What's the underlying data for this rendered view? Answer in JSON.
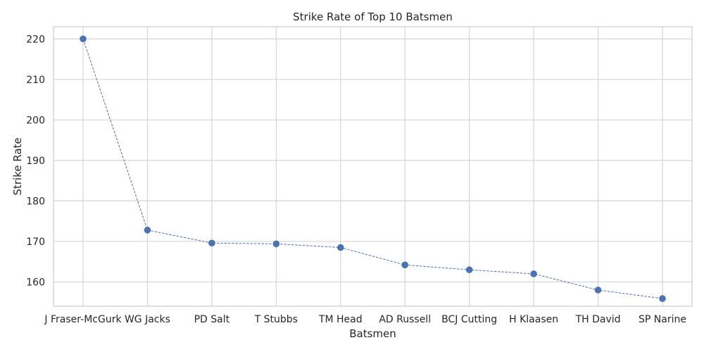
{
  "chart_data": {
    "type": "line",
    "title": "Strike Rate of Top 10 Batsmen",
    "xlabel": "Batsmen",
    "ylabel": "Strike Rate",
    "categories": [
      "J Fraser-McGurk",
      "WG Jacks",
      "PD Salt",
      "T Stubbs",
      "TM Head",
      "AD Russell",
      "BCJ Cutting",
      "H Klaasen",
      "TH David",
      "SP Narine"
    ],
    "series": [
      {
        "values": [
          220.0,
          172.8,
          169.6,
          169.4,
          168.5,
          164.2,
          163.0,
          162.0,
          158.0,
          155.9
        ]
      }
    ],
    "ylim": [
      154,
      223
    ],
    "yticks": [
      160,
      170,
      180,
      190,
      200,
      210,
      220
    ],
    "grid": true,
    "line_style": "dashed",
    "marker": "circle",
    "colors": {
      "series": "#4c72b0",
      "grid": "#d5d5d5",
      "axes_edge": "#cccccc",
      "background": "#ffffff",
      "text": "#262626"
    }
  }
}
